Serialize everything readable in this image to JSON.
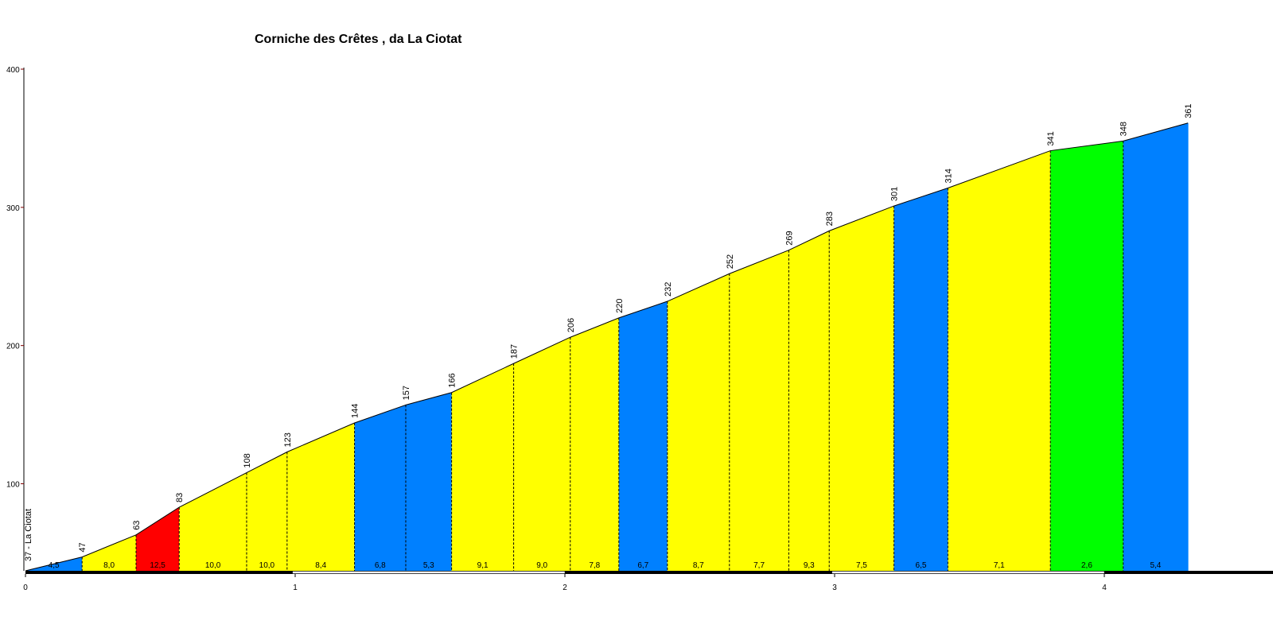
{
  "chart_data": {
    "type": "area",
    "title": "Corniche des Crêtes , da La Ciotat",
    "xlabel": "",
    "ylabel": "",
    "xlim": [
      0,
      4.6
    ],
    "ylim": [
      37,
      400
    ],
    "x_ticks": [
      "0",
      "1",
      "2",
      "3",
      "4"
    ],
    "y_ticks": [
      "100",
      "200",
      "300",
      "400"
    ],
    "start_label": "37 - La Ciotat",
    "points": [
      {
        "km": 0.0,
        "elev": 37,
        "label": ""
      },
      {
        "km": 0.21,
        "elev": 47,
        "label": "47"
      },
      {
        "km": 0.41,
        "elev": 63,
        "label": "63"
      },
      {
        "km": 0.57,
        "elev": 83,
        "label": "83"
      },
      {
        "km": 0.82,
        "elev": 108,
        "label": "108"
      },
      {
        "km": 0.97,
        "elev": 123,
        "label": "123"
      },
      {
        "km": 1.22,
        "elev": 144,
        "label": "144"
      },
      {
        "km": 1.41,
        "elev": 157,
        "label": "157"
      },
      {
        "km": 1.58,
        "elev": 166,
        "label": "166"
      },
      {
        "km": 1.81,
        "elev": 187,
        "label": "187"
      },
      {
        "km": 2.02,
        "elev": 206,
        "label": "206"
      },
      {
        "km": 2.2,
        "elev": 220,
        "label": "220"
      },
      {
        "km": 2.38,
        "elev": 232,
        "label": "232"
      },
      {
        "km": 2.61,
        "elev": 252,
        "label": "252"
      },
      {
        "km": 2.83,
        "elev": 269,
        "label": "269"
      },
      {
        "km": 2.98,
        "elev": 283,
        "label": "283"
      },
      {
        "km": 3.22,
        "elev": 301,
        "label": "301"
      },
      {
        "km": 3.42,
        "elev": 314,
        "label": "314"
      },
      {
        "km": 3.8,
        "elev": 341,
        "label": "341"
      },
      {
        "km": 4.07,
        "elev": 348,
        "label": "348"
      },
      {
        "km": 4.31,
        "elev": 361,
        "label": "361"
      }
    ],
    "segments": [
      {
        "gradient": "4,5",
        "color": "#0080ff"
      },
      {
        "gradient": "8,0",
        "color": "#ffff00"
      },
      {
        "gradient": "12,5",
        "color": "#ff0000"
      },
      {
        "gradient": "10,0",
        "color": "#ffff00"
      },
      {
        "gradient": "10,0",
        "color": "#ffff00"
      },
      {
        "gradient": "8,4",
        "color": "#ffff00"
      },
      {
        "gradient": "6,8",
        "color": "#0080ff"
      },
      {
        "gradient": "5,3",
        "color": "#0080ff"
      },
      {
        "gradient": "9,1",
        "color": "#ffff00"
      },
      {
        "gradient": "9,0",
        "color": "#ffff00"
      },
      {
        "gradient": "7,8",
        "color": "#ffff00"
      },
      {
        "gradient": "6,7",
        "color": "#0080ff"
      },
      {
        "gradient": "8,7",
        "color": "#ffff00"
      },
      {
        "gradient": "7,7",
        "color": "#ffff00"
      },
      {
        "gradient": "9,3",
        "color": "#ffff00"
      },
      {
        "gradient": "7,5",
        "color": "#ffff00"
      },
      {
        "gradient": "6,5",
        "color": "#0080ff"
      },
      {
        "gradient": "7,1",
        "color": "#ffff00"
      },
      {
        "gradient": "2,6",
        "color": "#00ff00"
      },
      {
        "gradient": "5,4",
        "color": "#0080ff"
      }
    ],
    "colors": {
      "axis": "#000000",
      "tick_mark": "#800000",
      "profile_line": "#000000",
      "km_bar_dark": "#000000",
      "km_bar_light": "#ffffff"
    }
  }
}
